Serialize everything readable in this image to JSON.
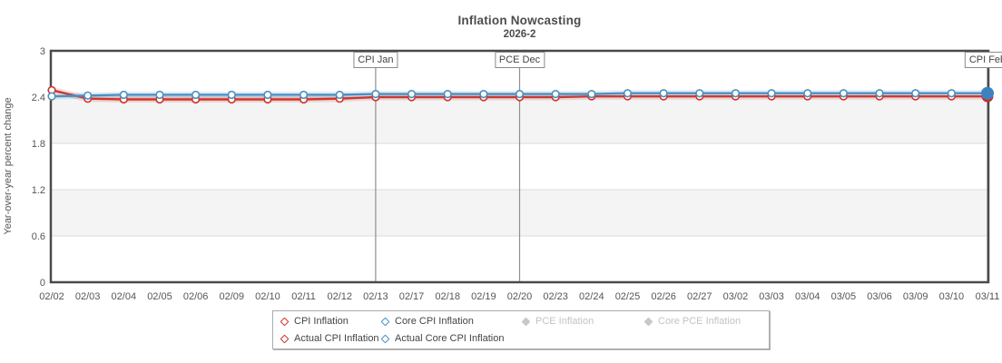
{
  "chart_data": {
    "type": "line",
    "title": "Inflation Nowcasting",
    "subtitle": "2026-2",
    "ylabel": "Year-over-year percent change",
    "ylim": [
      0,
      3
    ],
    "yticks": [
      0,
      0.6,
      1.2,
      1.8,
      2.4,
      3
    ],
    "grid": true,
    "bands": [
      [
        1.8,
        2.4
      ],
      [
        0.6,
        1.2
      ]
    ],
    "x": [
      "02/02",
      "02/03",
      "02/04",
      "02/05",
      "02/06",
      "02/09",
      "02/10",
      "02/11",
      "02/12",
      "02/13",
      "02/17",
      "02/18",
      "02/19",
      "02/20",
      "02/23",
      "02/24",
      "02/25",
      "02/26",
      "02/27",
      "03/02",
      "03/03",
      "03/04",
      "03/05",
      "03/06",
      "03/09",
      "03/10",
      "03/11"
    ],
    "series": [
      {
        "name": "CPI Inflation",
        "color": "#d0342c",
        "values": [
          2.49,
          2.38,
          2.37,
          2.37,
          2.37,
          2.37,
          2.37,
          2.37,
          2.38,
          2.4,
          2.4,
          2.4,
          2.4,
          2.4,
          2.4,
          2.41,
          2.41,
          2.41,
          2.41,
          2.41,
          2.41,
          2.41,
          2.41,
          2.41,
          2.41,
          2.41,
          2.41
        ]
      },
      {
        "name": "Core CPI Inflation",
        "color": "#4a90c2",
        "values": [
          2.41,
          2.42,
          2.43,
          2.43,
          2.43,
          2.43,
          2.43,
          2.43,
          2.43,
          2.44,
          2.44,
          2.44,
          2.44,
          2.44,
          2.44,
          2.44,
          2.45,
          2.45,
          2.45,
          2.45,
          2.45,
          2.45,
          2.45,
          2.45,
          2.45,
          2.45,
          2.45
        ]
      }
    ],
    "actual_points": [
      {
        "name": "Actual CPI Inflation",
        "color": "#c9302b",
        "x": "03/11",
        "value": 2.41,
        "radius": 6.5
      },
      {
        "name": "Actual Core CPI Inflation",
        "color": "#3d82bf",
        "x": "03/11",
        "value": 2.45,
        "radius": 7
      }
    ],
    "events": [
      {
        "label": "CPI Jan",
        "x": "02/13"
      },
      {
        "label": "PCE Dec",
        "x": "02/20"
      },
      {
        "label": "CPI Feb",
        "x": "03/11"
      }
    ],
    "colors": {
      "band": "#f4f4f4",
      "grid": "#dbdbdb",
      "axis": "#4a4a4a",
      "event_line": "#8f8f8f",
      "tick_text": "#555555"
    }
  },
  "legend": {
    "items": [
      {
        "label": "CPI Inflation",
        "color": "#d0342c",
        "style": "outline",
        "enabled": true
      },
      {
        "label": "Core CPI Inflation",
        "color": "#4a90c2",
        "style": "outline",
        "enabled": true
      },
      {
        "label": "PCE Inflation",
        "color": "#c8c8c8",
        "style": "solid",
        "enabled": false
      },
      {
        "label": "Core PCE Inflation",
        "color": "#c8c8c8",
        "style": "solid",
        "enabled": false
      },
      {
        "label": "Actual CPI Inflation",
        "color": "#d0342c",
        "style": "outline",
        "enabled": true
      },
      {
        "label": "Actual Core CPI Inflation",
        "color": "#4a90c2",
        "style": "outline",
        "enabled": true
      }
    ]
  }
}
